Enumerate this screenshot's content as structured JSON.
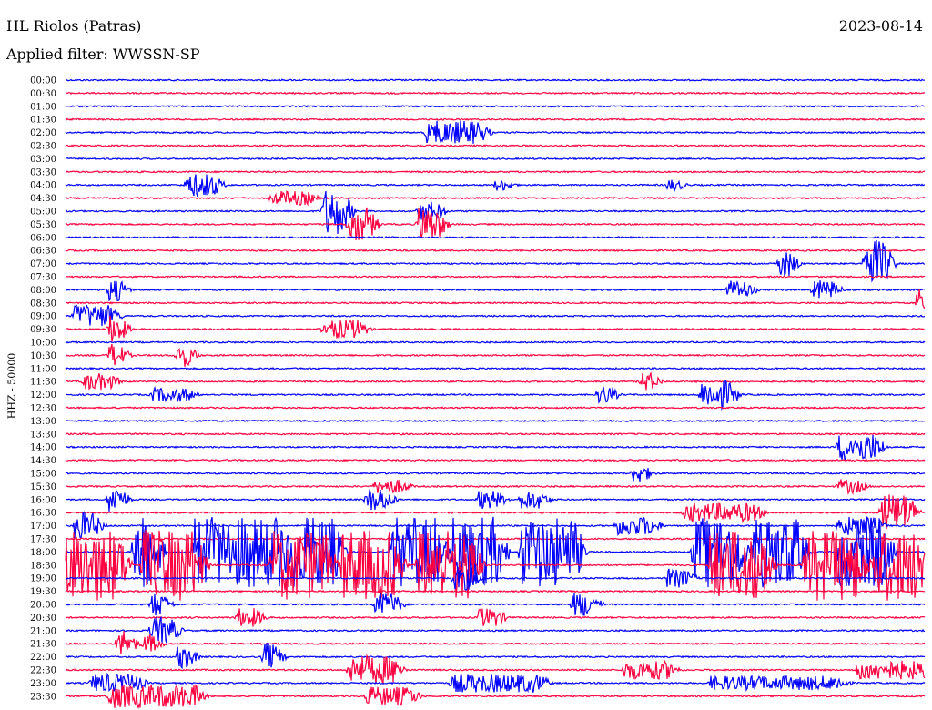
{
  "header": {
    "station": "HL Riolos (Patras)",
    "date": "2023-08-14",
    "filter": "Applied filter: WWSSN-SP",
    "channel": "HHZ - 50000"
  },
  "chart_data": {
    "type": "line",
    "subtype": "helicorder",
    "row_labels": [
      "00:00",
      "00:30",
      "01:00",
      "01:30",
      "02:00",
      "02:30",
      "03:00",
      "03:30",
      "04:00",
      "04:30",
      "05:00",
      "05:30",
      "06:00",
      "06:30",
      "07:00",
      "07:30",
      "08:00",
      "08:30",
      "09:00",
      "09:30",
      "10:00",
      "10:30",
      "11:00",
      "11:30",
      "12:00",
      "12:30",
      "13:00",
      "13:30",
      "14:00",
      "14:30",
      "15:00",
      "15:30",
      "16:00",
      "16:30",
      "17:00",
      "17:30",
      "18:00",
      "18:30",
      "19:00",
      "19:30",
      "20:00",
      "20:30",
      "21:00",
      "21:30",
      "22:00",
      "22:30",
      "23:00",
      "23:30"
    ],
    "colors": [
      "#0000ff",
      "#ff0040"
    ],
    "grid": false,
    "events": [
      {
        "row": 4,
        "x": 0.42,
        "amp": 1.0,
        "len": 0.06
      },
      {
        "row": 8,
        "x": 0.14,
        "amp": 1.0,
        "len": 0.03
      },
      {
        "row": 8,
        "x": 0.5,
        "amp": 0.5,
        "len": 0.01
      },
      {
        "row": 8,
        "x": 0.7,
        "amp": 0.5,
        "len": 0.01
      },
      {
        "row": 9,
        "x": 0.24,
        "amp": 0.6,
        "len": 0.04
      },
      {
        "row": 10,
        "x": 0.3,
        "amp": 2.0,
        "len": 0.02
      },
      {
        "row": 10,
        "x": 0.41,
        "amp": 0.8,
        "len": 0.02
      },
      {
        "row": 11,
        "x": 0.33,
        "amp": 1.5,
        "len": 0.02
      },
      {
        "row": 11,
        "x": 0.41,
        "amp": 1.5,
        "len": 0.02
      },
      {
        "row": 14,
        "x": 0.83,
        "amp": 1.2,
        "len": 0.01
      },
      {
        "row": 14,
        "x": 0.93,
        "amp": 2.0,
        "len": 0.02
      },
      {
        "row": 16,
        "x": 0.05,
        "amp": 1.0,
        "len": 0.01
      },
      {
        "row": 16,
        "x": 0.77,
        "amp": 0.8,
        "len": 0.02
      },
      {
        "row": 16,
        "x": 0.87,
        "amp": 0.8,
        "len": 0.02
      },
      {
        "row": 17,
        "x": 0.99,
        "amp": 1.2,
        "len": 0.02
      },
      {
        "row": 18,
        "x": 0.01,
        "amp": 1.0,
        "len": 0.04
      },
      {
        "row": 19,
        "x": 0.05,
        "amp": 1.2,
        "len": 0.01
      },
      {
        "row": 19,
        "x": 0.3,
        "amp": 0.8,
        "len": 0.04
      },
      {
        "row": 21,
        "x": 0.05,
        "amp": 1.0,
        "len": 0.01
      },
      {
        "row": 21,
        "x": 0.13,
        "amp": 1.0,
        "len": 0.01
      },
      {
        "row": 23,
        "x": 0.02,
        "amp": 0.7,
        "len": 0.03
      },
      {
        "row": 23,
        "x": 0.67,
        "amp": 0.8,
        "len": 0.01
      },
      {
        "row": 24,
        "x": 0.1,
        "amp": 0.6,
        "len": 0.04
      },
      {
        "row": 24,
        "x": 0.62,
        "amp": 0.8,
        "len": 0.01
      },
      {
        "row": 24,
        "x": 0.74,
        "amp": 1.2,
        "len": 0.03
      },
      {
        "row": 28,
        "x": 0.9,
        "amp": 1.2,
        "len": 0.04
      },
      {
        "row": 30,
        "x": 0.66,
        "amp": 0.8,
        "len": 0.01
      },
      {
        "row": 31,
        "x": 0.36,
        "amp": 0.6,
        "len": 0.03
      },
      {
        "row": 31,
        "x": 0.9,
        "amp": 0.6,
        "len": 0.02
      },
      {
        "row": 32,
        "x": 0.05,
        "amp": 1.2,
        "len": 0.01
      },
      {
        "row": 32,
        "x": 0.35,
        "amp": 1.0,
        "len": 0.02
      },
      {
        "row": 32,
        "x": 0.48,
        "amp": 0.8,
        "len": 0.02
      },
      {
        "row": 32,
        "x": 0.53,
        "amp": 0.8,
        "len": 0.02
      },
      {
        "row": 33,
        "x": 0.72,
        "amp": 0.8,
        "len": 0.08
      },
      {
        "row": 33,
        "x": 0.95,
        "amp": 1.6,
        "len": 0.03
      },
      {
        "row": 34,
        "x": 0.01,
        "amp": 1.2,
        "len": 0.02
      },
      {
        "row": 34,
        "x": 0.64,
        "amp": 0.8,
        "len": 0.04
      },
      {
        "row": 34,
        "x": 0.9,
        "amp": 0.8,
        "len": 0.04
      },
      {
        "row": 36,
        "x": 0.08,
        "amp": 3.0,
        "len": 0.02
      },
      {
        "row": 36,
        "x": 0.15,
        "amp": 3.0,
        "len": 0.1
      },
      {
        "row": 36,
        "x": 0.26,
        "amp": 3.0,
        "len": 0.05
      },
      {
        "row": 36,
        "x": 0.38,
        "amp": 3.0,
        "len": 0.05
      },
      {
        "row": 36,
        "x": 0.45,
        "amp": 3.0,
        "len": 0.05
      },
      {
        "row": 36,
        "x": 0.53,
        "amp": 3.0,
        "len": 0.06
      },
      {
        "row": 36,
        "x": 0.73,
        "amp": 3.0,
        "len": 0.05
      },
      {
        "row": 36,
        "x": 0.8,
        "amp": 3.0,
        "len": 0.05
      },
      {
        "row": 36,
        "x": 0.9,
        "amp": 3.0,
        "len": 0.05
      },
      {
        "row": 37,
        "x": 0.0,
        "amp": 3.0,
        "len": 0.06
      },
      {
        "row": 37,
        "x": 0.09,
        "amp": 3.0,
        "len": 0.06
      },
      {
        "row": 37,
        "x": 0.24,
        "amp": 3.0,
        "len": 0.06
      },
      {
        "row": 37,
        "x": 0.32,
        "amp": 3.0,
        "len": 0.06
      },
      {
        "row": 37,
        "x": 0.41,
        "amp": 3.0,
        "len": 0.06
      },
      {
        "row": 37,
        "x": 0.75,
        "amp": 3.0,
        "len": 0.06
      },
      {
        "row": 37,
        "x": 0.86,
        "amp": 3.0,
        "len": 0.06
      },
      {
        "row": 37,
        "x": 0.94,
        "amp": 3.0,
        "len": 0.06
      },
      {
        "row": 38,
        "x": 0.45,
        "amp": 1.0,
        "len": 0.02
      },
      {
        "row": 38,
        "x": 0.7,
        "amp": 0.8,
        "len": 0.02
      },
      {
        "row": 40,
        "x": 0.1,
        "amp": 1.0,
        "len": 0.01
      },
      {
        "row": 40,
        "x": 0.36,
        "amp": 1.0,
        "len": 0.02
      },
      {
        "row": 40,
        "x": 0.59,
        "amp": 1.0,
        "len": 0.02
      },
      {
        "row": 41,
        "x": 0.2,
        "amp": 0.8,
        "len": 0.02
      },
      {
        "row": 41,
        "x": 0.48,
        "amp": 0.8,
        "len": 0.02
      },
      {
        "row": 42,
        "x": 0.1,
        "amp": 1.2,
        "len": 0.02
      },
      {
        "row": 43,
        "x": 0.06,
        "amp": 1.2,
        "len": 0.01
      },
      {
        "row": 43,
        "x": 0.09,
        "amp": 0.8,
        "len": 0.01
      },
      {
        "row": 44,
        "x": 0.13,
        "amp": 1.0,
        "len": 0.01
      },
      {
        "row": 44,
        "x": 0.23,
        "amp": 1.2,
        "len": 0.01
      },
      {
        "row": 45,
        "x": 0.33,
        "amp": 1.2,
        "len": 0.05
      },
      {
        "row": 45,
        "x": 0.65,
        "amp": 0.8,
        "len": 0.05
      },
      {
        "row": 45,
        "x": 0.92,
        "amp": 0.8,
        "len": 0.08
      },
      {
        "row": 46,
        "x": 0.03,
        "amp": 0.8,
        "len": 0.05
      },
      {
        "row": 46,
        "x": 0.45,
        "amp": 0.8,
        "len": 0.1
      },
      {
        "row": 46,
        "x": 0.75,
        "amp": 0.6,
        "len": 0.15
      },
      {
        "row": 47,
        "x": 0.05,
        "amp": 1.0,
        "len": 0.1
      },
      {
        "row": 47,
        "x": 0.35,
        "amp": 0.8,
        "len": 0.05
      }
    ]
  }
}
